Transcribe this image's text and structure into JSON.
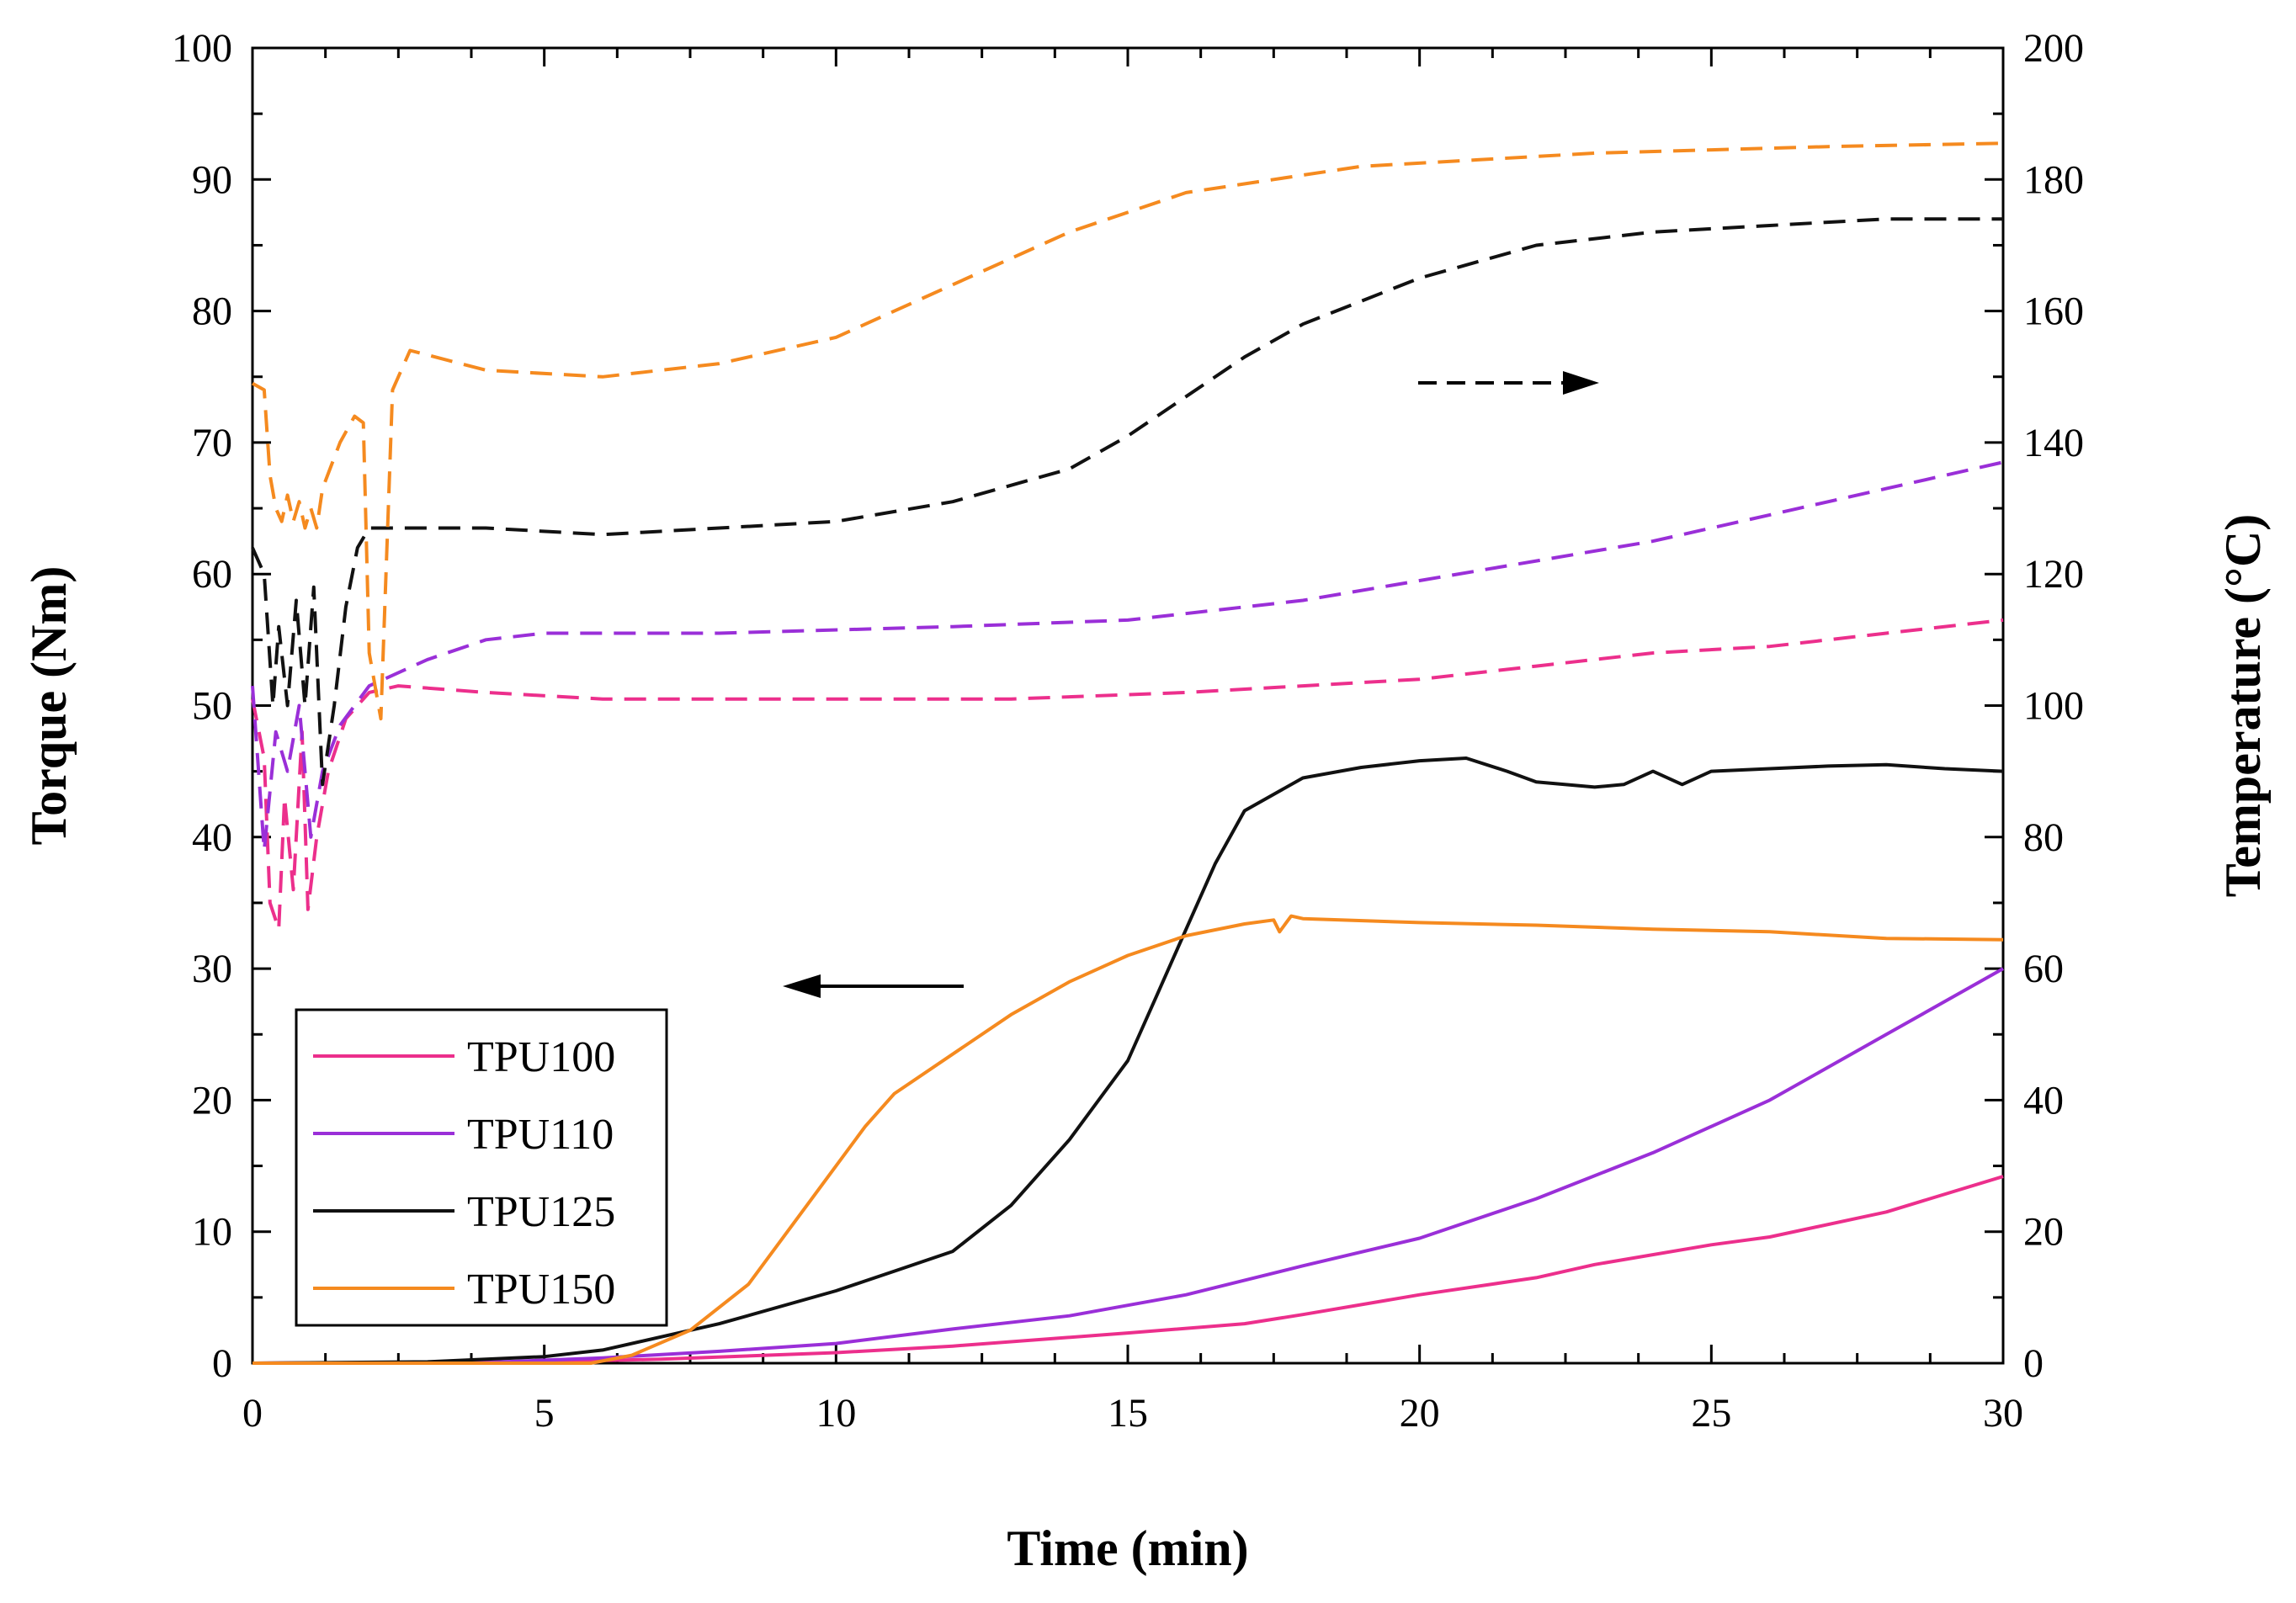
{
  "chart_data": {
    "type": "line",
    "title": "",
    "xlabel": "Time (min)",
    "ylabel_left": "Torque (Nm)",
    "ylabel_right": "Temperature (°C)",
    "xlim": [
      0,
      30
    ],
    "ylim_left": [
      0,
      100
    ],
    "ylim_right": [
      0,
      200
    ],
    "x_ticks": [
      0,
      5,
      10,
      15,
      20,
      25,
      30
    ],
    "y_left_ticks": [
      0,
      10,
      20,
      30,
      40,
      50,
      60,
      70,
      80,
      90,
      100
    ],
    "y_right_ticks": [
      0,
      20,
      40,
      60,
      80,
      100,
      120,
      140,
      160,
      180,
      200
    ],
    "grid": false,
    "legend_position": "bottom-left",
    "annotations": [
      {
        "type": "arrow",
        "direction": "left",
        "style": "solid",
        "meaning": "torque curves read on left axis"
      },
      {
        "type": "arrow",
        "direction": "right",
        "style": "dashed",
        "meaning": "temperature curves read on right axis"
      }
    ],
    "series": [
      {
        "name": "TPU100",
        "color": "#ec2f8c",
        "torque": [
          [
            0,
            0
          ],
          [
            5,
            0.1
          ],
          [
            7,
            0.3
          ],
          [
            10,
            0.8
          ],
          [
            12,
            1.3
          ],
          [
            15,
            2.3
          ],
          [
            17,
            3.0
          ],
          [
            18,
            3.7
          ],
          [
            20,
            5.2
          ],
          [
            22,
            6.5
          ],
          [
            23,
            7.5
          ],
          [
            25,
            9.0
          ],
          [
            26,
            9.6
          ],
          [
            28,
            11.5
          ],
          [
            30,
            14.2
          ]
        ],
        "temperature": [
          [
            0,
            101
          ],
          [
            0.2,
            92
          ],
          [
            0.3,
            70
          ],
          [
            0.45,
            66
          ],
          [
            0.55,
            86
          ],
          [
            0.7,
            72
          ],
          [
            0.85,
            96
          ],
          [
            0.95,
            69
          ],
          [
            1.1,
            80
          ],
          [
            1.3,
            90
          ],
          [
            1.6,
            98
          ],
          [
            2,
            102
          ],
          [
            2.5,
            103
          ],
          [
            4,
            102
          ],
          [
            6,
            101
          ],
          [
            10,
            101
          ],
          [
            13,
            101
          ],
          [
            16,
            102
          ],
          [
            18,
            103
          ],
          [
            20,
            104
          ],
          [
            22,
            106
          ],
          [
            24,
            108
          ],
          [
            26,
            109
          ],
          [
            28,
            111
          ],
          [
            30,
            113
          ]
        ]
      },
      {
        "name": "TPU110",
        "color": "#9a2fd8",
        "torque": [
          [
            0,
            0
          ],
          [
            4,
            0.05
          ],
          [
            6,
            0.4
          ],
          [
            8,
            0.9
          ],
          [
            10,
            1.5
          ],
          [
            12,
            2.6
          ],
          [
            14,
            3.6
          ],
          [
            16,
            5.2
          ],
          [
            18,
            7.4
          ],
          [
            20,
            9.5
          ],
          [
            22,
            12.5
          ],
          [
            24,
            16
          ],
          [
            26,
            20
          ],
          [
            28,
            25
          ],
          [
            30,
            30
          ]
        ],
        "temperature": [
          [
            0,
            103
          ],
          [
            0.2,
            78
          ],
          [
            0.4,
            96
          ],
          [
            0.6,
            90
          ],
          [
            0.8,
            100
          ],
          [
            1.0,
            80
          ],
          [
            1.2,
            90
          ],
          [
            1.5,
            97
          ],
          [
            2,
            103
          ],
          [
            3,
            107
          ],
          [
            4,
            110
          ],
          [
            5,
            111
          ],
          [
            8,
            111
          ],
          [
            12,
            112
          ],
          [
            15,
            113
          ],
          [
            18,
            116
          ],
          [
            20,
            119
          ],
          [
            22,
            122
          ],
          [
            24,
            125
          ],
          [
            26,
            129
          ],
          [
            28,
            133
          ],
          [
            30,
            137
          ]
        ]
      },
      {
        "name": "TPU125",
        "color": "#111111",
        "torque": [
          [
            0,
            0
          ],
          [
            3,
            0.1
          ],
          [
            5,
            0.5
          ],
          [
            6,
            1.0
          ],
          [
            8,
            3.0
          ],
          [
            10,
            5.5
          ],
          [
            11,
            7.0
          ],
          [
            12,
            8.5
          ],
          [
            13,
            12
          ],
          [
            14,
            17
          ],
          [
            14.5,
            20
          ],
          [
            15,
            23
          ],
          [
            15.5,
            28
          ],
          [
            16,
            33
          ],
          [
            16.5,
            38
          ],
          [
            17,
            42
          ],
          [
            18,
            44.5
          ],
          [
            19,
            45.3
          ],
          [
            20,
            45.8
          ],
          [
            20.8,
            46
          ],
          [
            21.5,
            45
          ],
          [
            22,
            44.2
          ],
          [
            23,
            43.8
          ],
          [
            23.5,
            44
          ],
          [
            24,
            45
          ],
          [
            24.5,
            44
          ],
          [
            25,
            45
          ],
          [
            26,
            45.2
          ],
          [
            27,
            45.4
          ],
          [
            28,
            45.5
          ],
          [
            29,
            45.2
          ],
          [
            30,
            45
          ]
        ],
        "temperature": [
          [
            0,
            124
          ],
          [
            0.2,
            120
          ],
          [
            0.35,
            100
          ],
          [
            0.45,
            112
          ],
          [
            0.6,
            100
          ],
          [
            0.75,
            116
          ],
          [
            0.9,
            100
          ],
          [
            1.05,
            118
          ],
          [
            1.2,
            88
          ],
          [
            1.4,
            100
          ],
          [
            1.6,
            115
          ],
          [
            1.8,
            124
          ],
          [
            2,
            127
          ],
          [
            4,
            127
          ],
          [
            6,
            126
          ],
          [
            8,
            127
          ],
          [
            10,
            128
          ],
          [
            12,
            131
          ],
          [
            14,
            136
          ],
          [
            15,
            141
          ],
          [
            16,
            147
          ],
          [
            17,
            153
          ],
          [
            18,
            158
          ],
          [
            20,
            165
          ],
          [
            22,
            170
          ],
          [
            24,
            172
          ],
          [
            26,
            173
          ],
          [
            28,
            174
          ],
          [
            30,
            174
          ]
        ]
      },
      {
        "name": "TPU150",
        "color": "#f58a1f",
        "torque": [
          [
            0,
            0
          ],
          [
            5.8,
            0
          ],
          [
            6.5,
            0.6
          ],
          [
            7.5,
            2.5
          ],
          [
            8.5,
            6
          ],
          [
            9.5,
            12
          ],
          [
            10.5,
            18
          ],
          [
            11,
            20.5
          ],
          [
            12,
            23.5
          ],
          [
            13,
            26.5
          ],
          [
            14,
            29
          ],
          [
            15,
            31
          ],
          [
            16,
            32.5
          ],
          [
            17,
            33.4
          ],
          [
            17.5,
            33.7
          ],
          [
            17.6,
            32.8
          ],
          [
            17.8,
            34
          ],
          [
            18,
            33.8
          ],
          [
            20,
            33.5
          ],
          [
            22,
            33.3
          ],
          [
            24,
            33
          ],
          [
            26,
            32.8
          ],
          [
            28,
            32.3
          ],
          [
            30,
            32.2
          ]
        ],
        "temperature": [
          [
            0,
            149
          ],
          [
            0.2,
            148
          ],
          [
            0.3,
            135
          ],
          [
            0.4,
            130
          ],
          [
            0.5,
            128
          ],
          [
            0.6,
            132
          ],
          [
            0.7,
            128
          ],
          [
            0.8,
            131
          ],
          [
            0.9,
            127
          ],
          [
            1.0,
            130
          ],
          [
            1.1,
            127
          ],
          [
            1.2,
            133
          ],
          [
            1.5,
            140
          ],
          [
            1.75,
            144
          ],
          [
            1.9,
            143
          ],
          [
            2,
            108
          ],
          [
            2.2,
            98
          ],
          [
            2.4,
            148
          ],
          [
            2.7,
            154
          ],
          [
            4,
            151
          ],
          [
            6,
            150
          ],
          [
            8,
            152
          ],
          [
            10,
            156
          ],
          [
            12,
            164
          ],
          [
            14,
            172
          ],
          [
            16,
            178
          ],
          [
            17.5,
            180
          ],
          [
            19,
            182
          ],
          [
            21,
            183
          ],
          [
            23,
            184
          ],
          [
            25,
            184.5
          ],
          [
            27,
            185
          ],
          [
            30,
            185.5
          ]
        ]
      }
    ]
  }
}
